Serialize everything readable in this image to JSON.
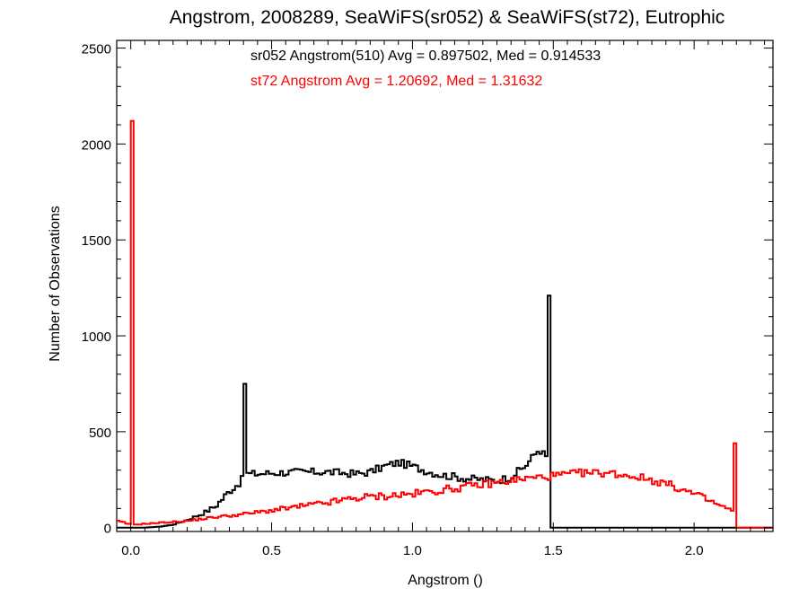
{
  "chart_data": {
    "type": "histogram",
    "title": "Angstrom, 2008289, SeaWiFS(sr052) & SeaWiFS(st72), Eutrophic",
    "xlabel": "Angstrom ()",
    "ylabel": "Number of Observations",
    "xlim": [
      -0.05,
      2.28
    ],
    "ylim": [
      -20,
      2540
    ],
    "xticks": [
      0.0,
      0.5,
      1.0,
      1.5,
      2.0
    ],
    "xtick_labels": [
      "0.0",
      "0.5",
      "1.0",
      "1.5",
      "2.0"
    ],
    "yticks": [
      0,
      500,
      1000,
      1500,
      2000,
      2500
    ],
    "ytick_labels": [
      "0",
      "500",
      "1000",
      "1500",
      "2000",
      "2500"
    ],
    "grid": false,
    "bin_width": 0.01,
    "x_start": -0.05,
    "series": [
      {
        "name": "sr052",
        "color": "#000000",
        "annotation": "sr052 Angstrom(510) Avg = 0.897502, Med = 0.914533",
        "anchors": [
          [
            -0.05,
            0
          ],
          [
            0.05,
            0
          ],
          [
            0.1,
            5
          ],
          [
            0.15,
            15
          ],
          [
            0.2,
            40
          ],
          [
            0.25,
            70
          ],
          [
            0.3,
            110
          ],
          [
            0.35,
            190
          ],
          [
            0.39,
            240
          ],
          [
            0.41,
            280
          ],
          [
            0.45,
            280
          ],
          [
            0.5,
            285
          ],
          [
            0.6,
            290
          ],
          [
            0.7,
            290
          ],
          [
            0.8,
            280
          ],
          [
            0.85,
            290
          ],
          [
            0.9,
            320
          ],
          [
            0.95,
            340
          ],
          [
            1.0,
            320
          ],
          [
            1.05,
            295
          ],
          [
            1.1,
            275
          ],
          [
            1.2,
            255
          ],
          [
            1.3,
            245
          ],
          [
            1.35,
            265
          ],
          [
            1.4,
            320
          ],
          [
            1.45,
            410
          ],
          [
            1.48,
            360
          ],
          [
            1.49,
            0
          ],
          [
            2.28,
            0
          ]
        ],
        "spikes": [
          [
            0.4,
            750
          ],
          [
            1.48,
            1210
          ]
        ]
      },
      {
        "name": "st72",
        "color": "#ff0000",
        "annotation": "st72 Angstrom Avg = 1.20692, Med = 1.31632",
        "anchors": [
          [
            -0.05,
            35
          ],
          [
            -0.02,
            25
          ],
          [
            0.0,
            15
          ],
          [
            0.1,
            25
          ],
          [
            0.2,
            35
          ],
          [
            0.3,
            55
          ],
          [
            0.4,
            70
          ],
          [
            0.5,
            90
          ],
          [
            0.6,
            110
          ],
          [
            0.7,
            130
          ],
          [
            0.8,
            155
          ],
          [
            0.9,
            165
          ],
          [
            1.0,
            175
          ],
          [
            1.1,
            195
          ],
          [
            1.2,
            215
          ],
          [
            1.3,
            235
          ],
          [
            1.4,
            255
          ],
          [
            1.5,
            270
          ],
          [
            1.6,
            285
          ],
          [
            1.7,
            285
          ],
          [
            1.8,
            265
          ],
          [
            1.9,
            230
          ],
          [
            2.0,
            175
          ],
          [
            2.1,
            110
          ],
          [
            2.14,
            85
          ],
          [
            2.15,
            0
          ],
          [
            2.28,
            0
          ]
        ],
        "spikes": [
          [
            0.0,
            2120
          ],
          [
            2.14,
            440
          ]
        ]
      }
    ]
  }
}
